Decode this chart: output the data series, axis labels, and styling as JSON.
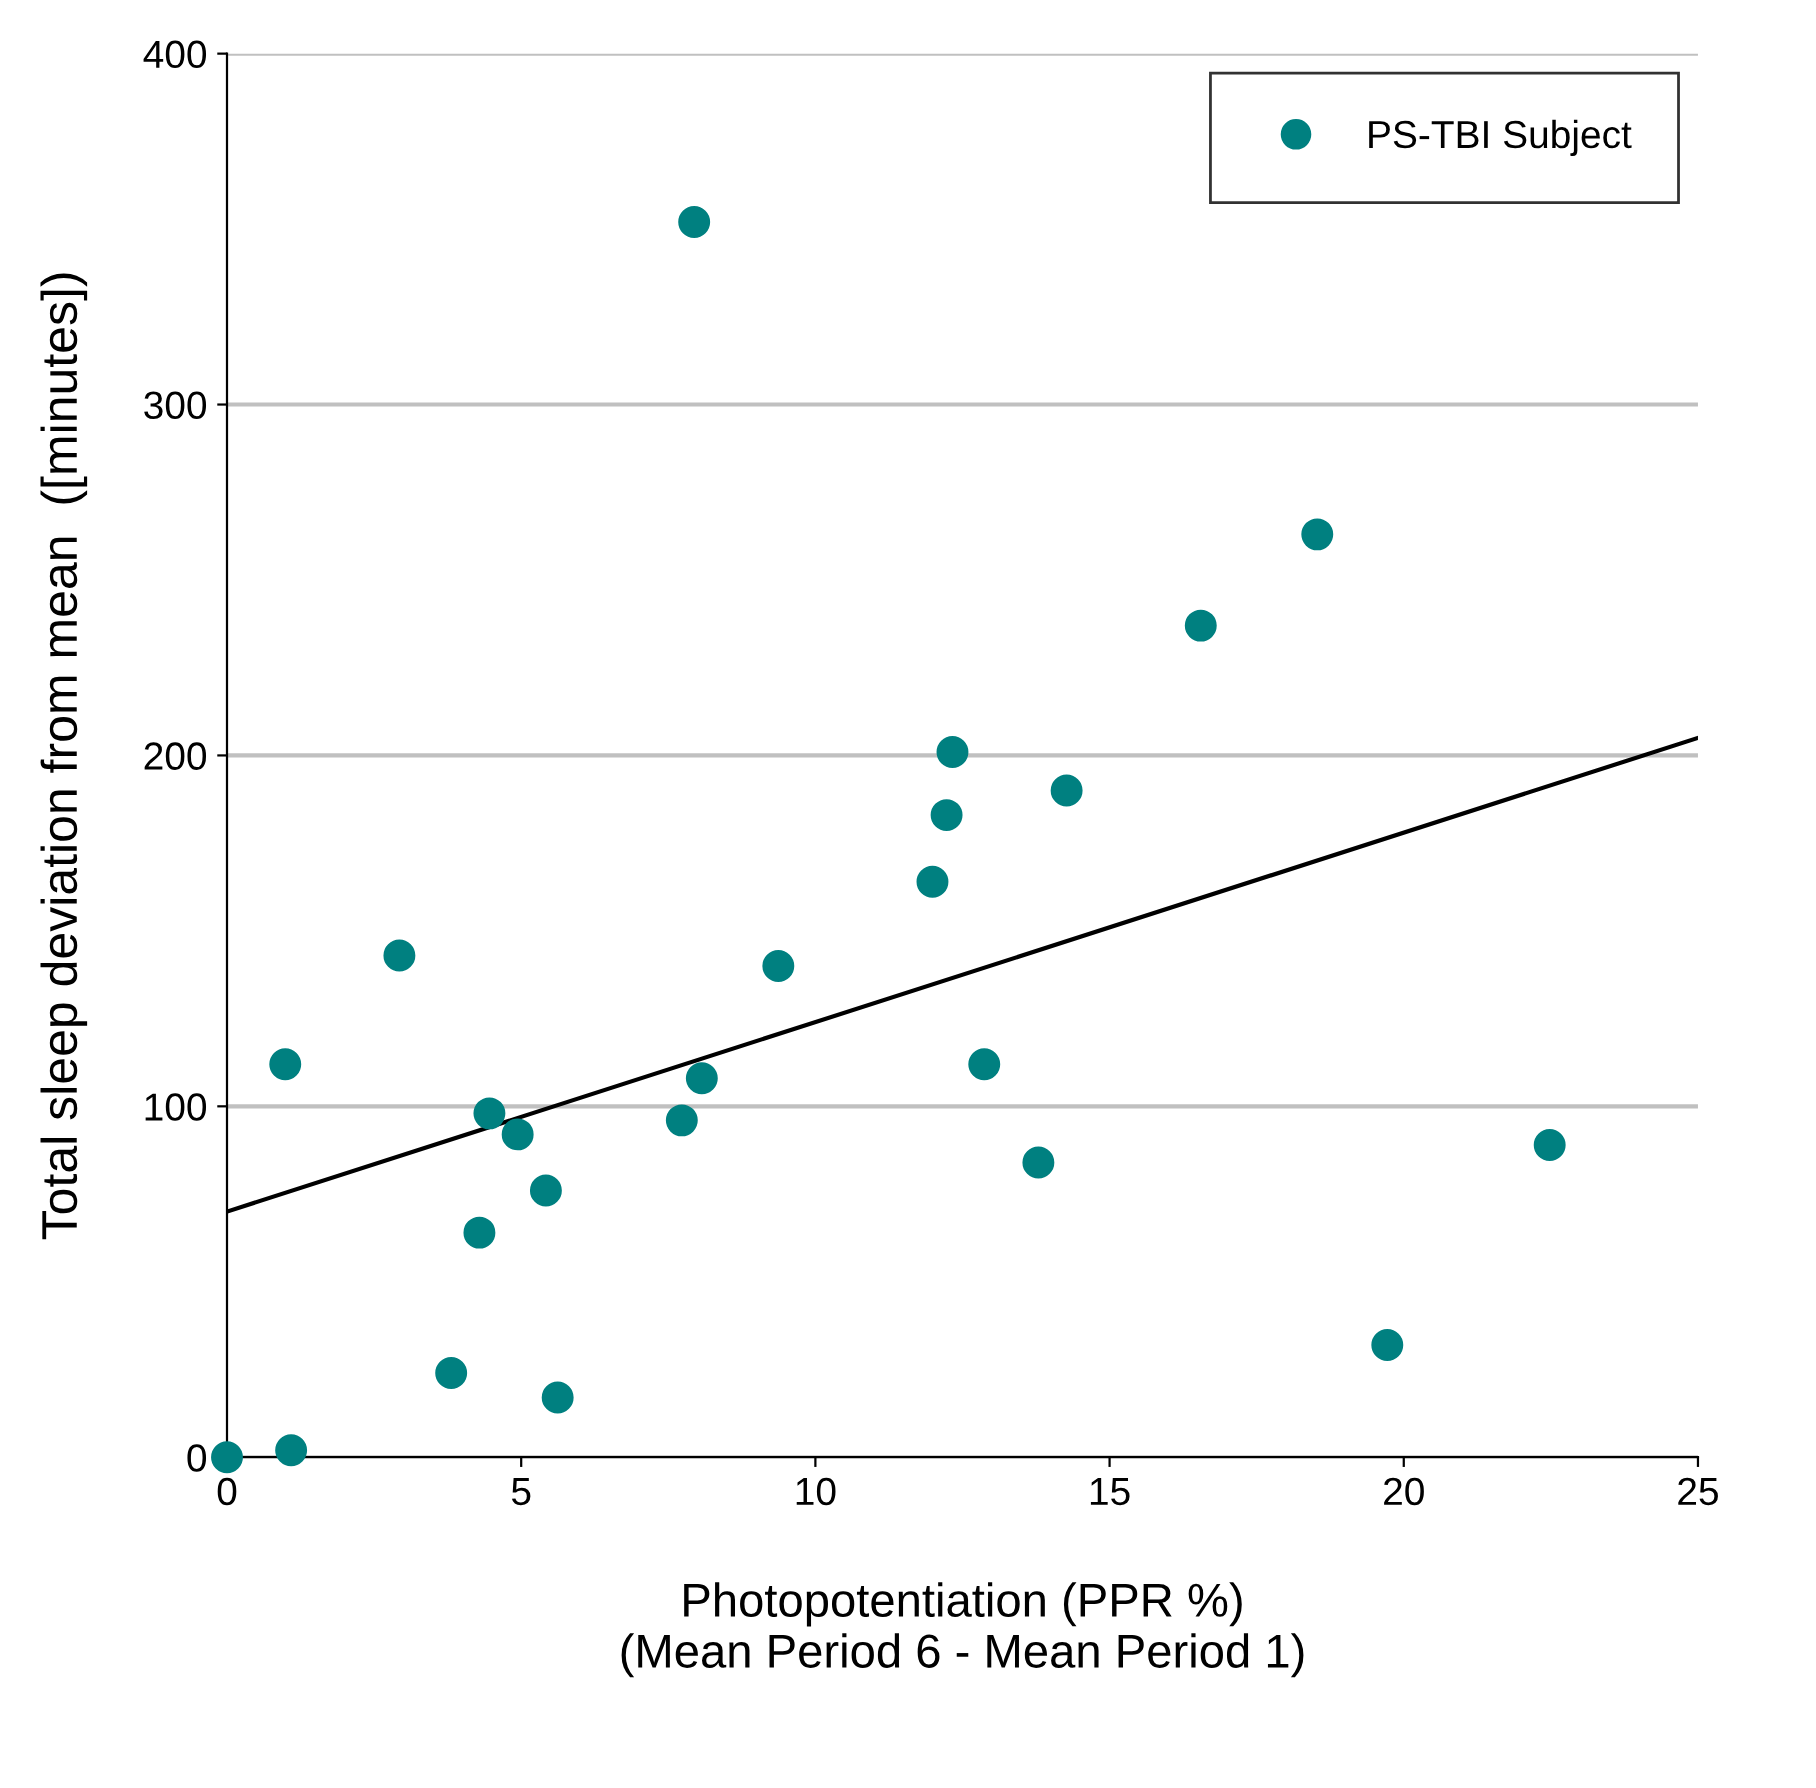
{
  "chart_data": {
    "type": "scatter",
    "xlabel": "Photopotentiation (PPR %)\n(Mean Period 6 - Mean Period 1)",
    "ylabel": "Total sleep deviation from mean  ([minutes])",
    "series": [
      {
        "name": "PS-TBI Subject",
        "color": "#008080",
        "marker": "circle",
        "x": [
          0,
          0.99,
          1.09,
          2.93,
          3.81,
          4.29,
          4.46,
          4.94,
          5.42,
          5.62,
          7.73,
          7.94,
          8.07,
          9.37,
          11.99,
          12.23,
          12.33,
          12.87,
          13.79,
          14.27,
          16.55,
          18.53,
          19.72,
          22.48
        ],
        "values": [
          0,
          112,
          2,
          143,
          24,
          64,
          98,
          92,
          76,
          17,
          96,
          352,
          108,
          140,
          164,
          183,
          201,
          112,
          84,
          190,
          237,
          263,
          32,
          89
        ]
      },
      {
        "type": "line",
        "color": "#000000",
        "marker": "none",
        "line_style": "solid",
        "x": [
          0,
          25
        ],
        "values": [
          70,
          205
        ]
      }
    ],
    "xlim": [
      0,
      25
    ],
    "xticks": [
      0,
      5,
      10,
      15,
      20,
      25
    ],
    "ylim": [
      0,
      400
    ],
    "yticks": [
      0,
      100,
      200,
      300,
      400
    ],
    "grid": "y",
    "legend": "top right"
  }
}
